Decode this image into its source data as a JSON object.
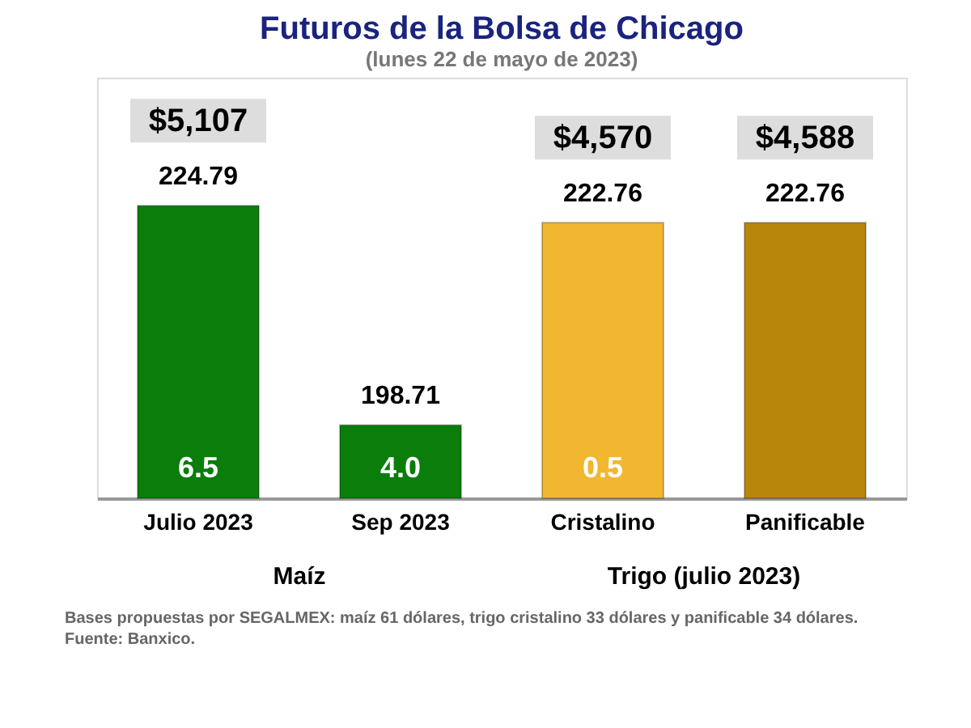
{
  "chart_data": {
    "type": "bar",
    "title": "Futuros de la Bolsa de Chicago",
    "subtitle": "(lunes 22 de mayo de 2023)",
    "categories": [
      "Julio 2023",
      "Sep 2023",
      "Cristalino",
      "Panificable"
    ],
    "values": [
      224.79,
      198.71,
      222.76,
      222.76
    ],
    "colors": [
      "#0a7d0a",
      "#0a7d0a",
      "#f2b731",
      "#b8860b"
    ],
    "data_labels": true,
    "ylim": [
      190,
      240
    ],
    "tick_labels": "x",
    "grid": false,
    "annotations": [
      "$5,107",
      "$4,570",
      "$4,588",
      "6.5",
      "4.0",
      "0.5",
      "Maíz",
      "Trigo (julio 2023)",
      "Bases propuestas por SEGALMEX: maíz 61 dólares, trigo cristalino 33 dólares y panificable 34 dólares.",
      "Fuente: Banxico."
    ]
  }
}
